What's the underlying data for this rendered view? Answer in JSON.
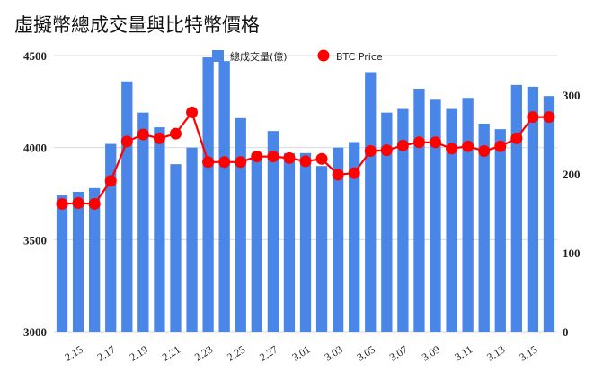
{
  "chart_data": {
    "type": "bar",
    "title": "虛擬幣總成交量與比特幣價格",
    "categories": [
      "2.14",
      "2.15",
      "2.16",
      "2.17",
      "2.18",
      "2.19",
      "2.20",
      "2.21",
      "2.22",
      "2.23",
      "2.24",
      "2.25",
      "2.26",
      "2.27",
      "2.28",
      "3.01",
      "3.02",
      "3.03",
      "3.04",
      "3.05",
      "3.06",
      "3.07",
      "3.08",
      "3.09",
      "3.10",
      "3.11",
      "3.12",
      "3.13",
      "3.14",
      "3.15",
      "3.16"
    ],
    "x_tick_labels": [
      "2.15",
      "2.17",
      "2.19",
      "2.21",
      "2.23",
      "2.25",
      "2.27",
      "3.01",
      "3.03",
      "3.05",
      "3.07",
      "3.09",
      "3.11",
      "3.13",
      "3.15"
    ],
    "x_tick_every": 2,
    "x_tick_offset": 1,
    "series": [
      {
        "name": "總成交量(億)",
        "type": "bar",
        "axis": "left",
        "color": "#4A86E8",
        "values": [
          3740,
          3760,
          3780,
          4020,
          4360,
          4190,
          4110,
          3910,
          4000,
          4490,
          4470,
          4160,
          3970,
          4090,
          3970,
          3970,
          3900,
          4000,
          4030,
          4410,
          4190,
          4210,
          4320,
          4260,
          4210,
          4270,
          4130,
          4100,
          4340,
          4330,
          4280
        ]
      },
      {
        "name": "BTC Price",
        "type": "line",
        "axis": "right",
        "color": "#FF0000",
        "values": [
          162,
          163,
          162,
          191,
          241,
          250,
          245,
          251,
          278,
          215,
          215,
          215,
          222,
          222,
          220,
          216,
          219,
          199,
          201,
          229,
          230,
          236,
          240,
          240,
          232,
          235,
          229,
          235,
          245,
          272,
          272
        ]
      }
    ],
    "y_left": {
      "min": 3000,
      "max": 4500,
      "ticks": [
        3000,
        3500,
        4000,
        4500
      ]
    },
    "y_right": {
      "min": 0,
      "max": 350,
      "ticks": [
        0,
        100,
        200,
        300
      ]
    },
    "grid": true,
    "legend_position": "top-center"
  }
}
